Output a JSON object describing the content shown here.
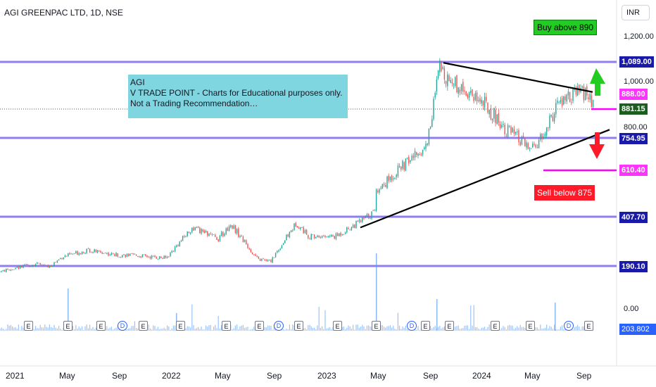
{
  "symbol_title": "AGI GREENPAC LTD, 1D, NSE",
  "currency_button": "INR",
  "chart_data": {
    "type": "candlestick",
    "title": "AGI GREENPAC LTD, 1D, NSE",
    "price_scale_labels": [
      "1,200.00",
      "1,000.00",
      "800.00",
      "0.00"
    ],
    "x_tick_labels": [
      "2021",
      "May",
      "Sep",
      "2022",
      "May",
      "Sep",
      "2023",
      "May",
      "Sep",
      "2024",
      "May",
      "Sep"
    ],
    "horizontal_levels": [
      {
        "value": 1089.0,
        "label": "1,089.00"
      },
      {
        "value": 754.95,
        "label": "754.95"
      },
      {
        "value": 407.7,
        "label": "407.70"
      },
      {
        "value": 190.1,
        "label": "190.10"
      }
    ],
    "price_tags": {
      "high_tag": "888.00",
      "last_price": "881.15",
      "low_tag": "610.40",
      "volume": "203.802 K"
    },
    "price_path": [
      [
        "2020-11",
        150
      ],
      [
        "2021-01",
        175
      ],
      [
        "2021-03",
        200
      ],
      [
        "2021-04",
        185
      ],
      [
        "2021-05",
        230
      ],
      [
        "2021-07",
        260
      ],
      [
        "2021-09",
        240
      ],
      [
        "2021-11",
        235
      ],
      [
        "2022-01",
        225
      ],
      [
        "2022-03",
        360
      ],
      [
        "2022-05",
        310
      ],
      [
        "2022-06",
        375
      ],
      [
        "2022-08",
        220
      ],
      [
        "2022-09",
        210
      ],
      [
        "2022-11",
        380
      ],
      [
        "2022-12",
        320
      ],
      [
        "2023-02",
        320
      ],
      [
        "2023-04",
        390
      ],
      [
        "2023-05",
        430
      ],
      [
        "2023-05",
        520
      ],
      [
        "2023-07",
        620
      ],
      [
        "2023-09",
        720
      ],
      [
        "2023-10",
        1060
      ],
      [
        "2023-11",
        1000
      ],
      [
        "2024-01",
        930
      ],
      [
        "2024-03",
        800
      ],
      [
        "2024-05",
        700
      ],
      [
        "2024-06",
        760
      ],
      [
        "2024-07",
        900
      ],
      [
        "2024-09",
        960
      ],
      [
        "2024-10",
        881
      ]
    ],
    "trendlines": [
      "upper descending",
      "lower ascending"
    ],
    "annotations": {
      "note_lines": [
        "AGI",
        "V TRADE POINT - Charts for Educational purposes only.",
        "Not a Trading Recommendation…"
      ],
      "buy_label": "Buy above 890",
      "sell_label": "Sell below 875"
    },
    "event_markers": [
      "E",
      "E",
      "E",
      "D",
      "E",
      "E",
      "E",
      "E",
      "D",
      "E",
      "E",
      "E",
      "D",
      "E",
      "E",
      "E",
      "E",
      "D",
      "E"
    ],
    "colors": {
      "level_line": "#7b68ee",
      "up_candle": "#26a69a",
      "down_candle": "#ef5350",
      "trendline": "#000000",
      "buy_arrow": "#22cc22",
      "sell_arrow": "#ff1a2a",
      "magenta": "#ff00ff",
      "volume_bar": "#5b9cf6"
    }
  }
}
